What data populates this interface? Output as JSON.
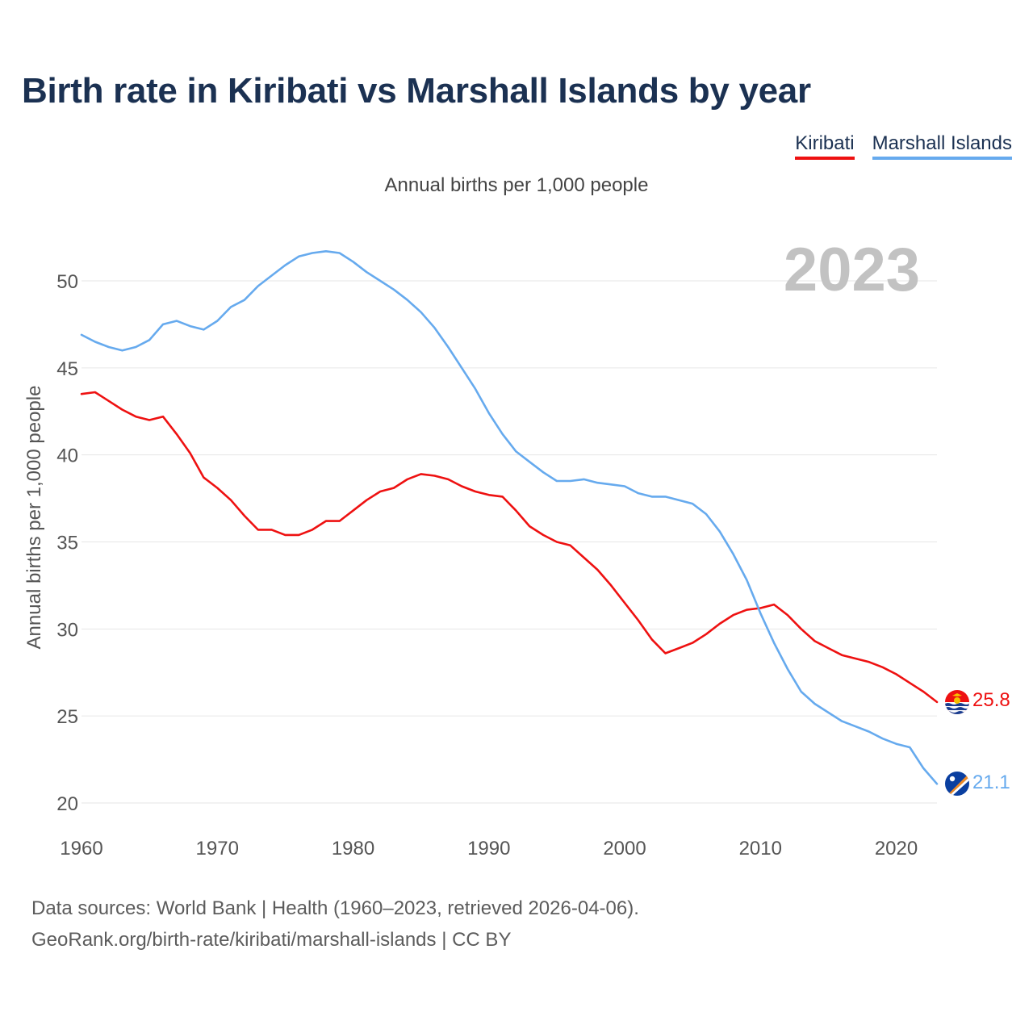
{
  "title": "Birth rate in Kiribati vs Marshall Islands by year",
  "legend": [
    {
      "label": "Kiribati",
      "color": "#ee1111"
    },
    {
      "label": "Marshall Islands",
      "color": "#66aaee"
    }
  ],
  "subtitle": "Annual births per 1,000 people",
  "footer": {
    "line1": "Data sources: World Bank | Health (1960–2023, retrieved 2026-04-06).",
    "line2": "GeoRank.org/birth-rate/kiribati/marshall-islands | CC BY"
  },
  "chart_data": {
    "type": "line",
    "year_label": "2023",
    "ylabel": "Annual births per 1,000 people",
    "xlim": [
      1960,
      2023
    ],
    "ylim": [
      20,
      52
    ],
    "x_ticks": [
      1960,
      1970,
      1980,
      1990,
      2000,
      2010,
      2020
    ],
    "y_ticks": [
      20,
      25,
      30,
      35,
      40,
      45,
      50
    ],
    "grid": true,
    "x": [
      1960,
      1961,
      1962,
      1963,
      1964,
      1965,
      1966,
      1967,
      1968,
      1969,
      1970,
      1971,
      1972,
      1973,
      1974,
      1975,
      1976,
      1977,
      1978,
      1979,
      1980,
      1981,
      1982,
      1983,
      1984,
      1985,
      1986,
      1987,
      1988,
      1989,
      1990,
      1991,
      1992,
      1993,
      1994,
      1995,
      1996,
      1997,
      1998,
      1999,
      2000,
      2001,
      2002,
      2003,
      2004,
      2005,
      2006,
      2007,
      2008,
      2009,
      2010,
      2011,
      2012,
      2013,
      2014,
      2015,
      2016,
      2017,
      2018,
      2019,
      2020,
      2021,
      2022,
      2023
    ],
    "series": [
      {
        "name": "Kiribati",
        "color": "#ee1111",
        "end_label": "25.8",
        "values": [
          43.5,
          43.6,
          43.1,
          42.6,
          42.2,
          42.0,
          42.2,
          41.2,
          40.1,
          38.7,
          38.1,
          37.4,
          36.5,
          35.7,
          35.7,
          35.4,
          35.4,
          35.7,
          36.2,
          36.2,
          36.8,
          37.4,
          37.9,
          38.1,
          38.6,
          38.9,
          38.8,
          38.6,
          38.2,
          37.9,
          37.7,
          37.6,
          36.8,
          35.9,
          35.4,
          35.0,
          34.8,
          34.1,
          33.4,
          32.5,
          31.5,
          30.5,
          29.4,
          28.6,
          28.9,
          29.2,
          29.7,
          30.3,
          30.8,
          31.1,
          31.2,
          31.4,
          30.8,
          30.0,
          29.3,
          28.9,
          28.5,
          28.3,
          28.1,
          27.8,
          27.4,
          26.9,
          26.4,
          25.8
        ]
      },
      {
        "name": "Marshall Islands",
        "color": "#66aaee",
        "end_label": "21.1",
        "values": [
          46.9,
          46.5,
          46.2,
          46.0,
          46.2,
          46.6,
          47.5,
          47.7,
          47.4,
          47.2,
          47.7,
          48.5,
          48.9,
          49.7,
          50.3,
          50.9,
          51.4,
          51.6,
          51.7,
          51.6,
          51.1,
          50.5,
          50.0,
          49.5,
          48.9,
          48.2,
          47.3,
          46.2,
          45.0,
          43.8,
          42.4,
          41.2,
          40.2,
          39.6,
          39.0,
          38.5,
          38.5,
          38.6,
          38.4,
          38.3,
          38.2,
          37.8,
          37.6,
          37.6,
          37.4,
          37.2,
          36.6,
          35.6,
          34.3,
          32.8,
          30.9,
          29.2,
          27.7,
          26.4,
          25.7,
          25.2,
          24.7,
          24.4,
          24.1,
          23.7,
          23.4,
          23.2,
          22.0,
          21.1
        ]
      }
    ]
  }
}
